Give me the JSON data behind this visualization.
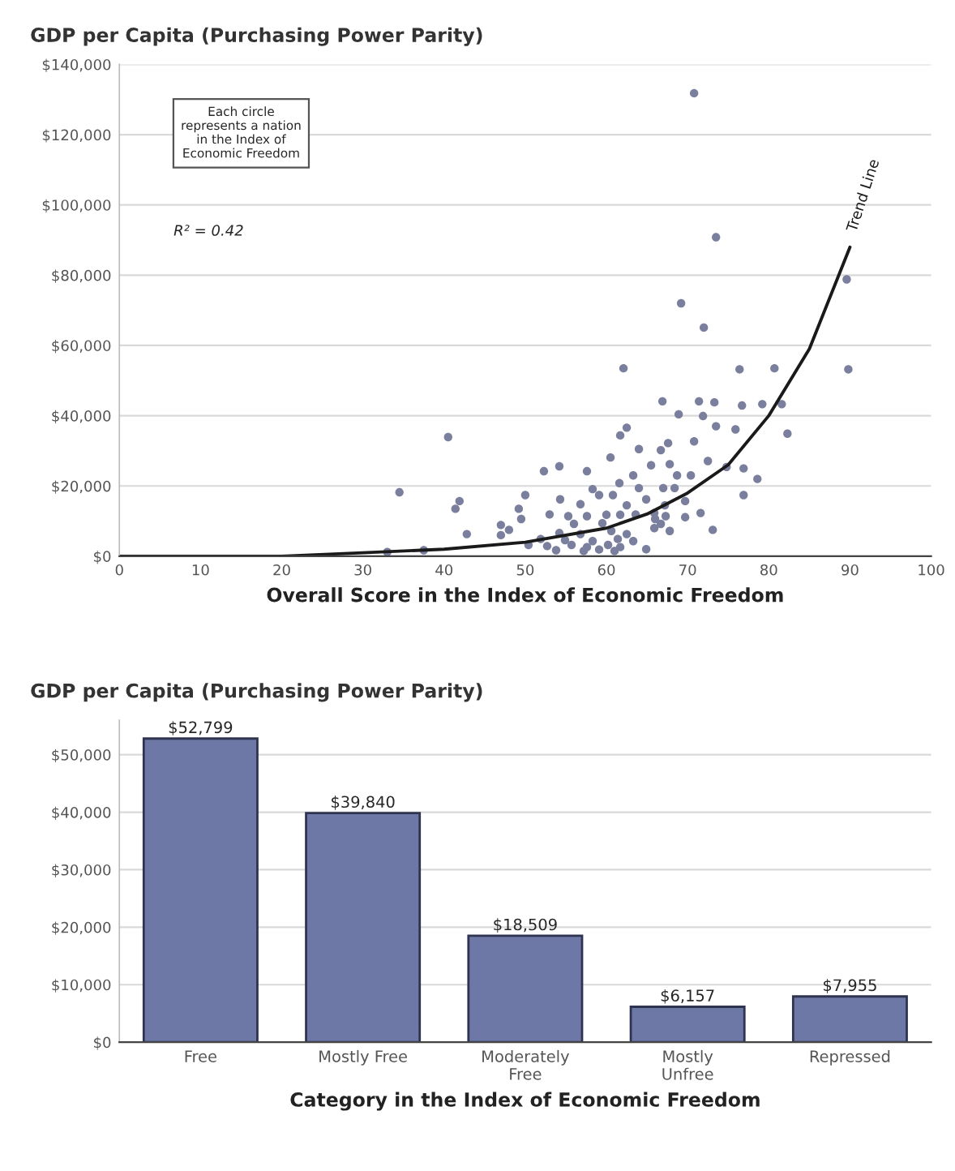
{
  "chart_data": [
    {
      "type": "scatter",
      "title": "GDP per Capita (Purchasing Power Parity)",
      "xlabel": "Overall Score in the Index of Economic Freedom",
      "xlim": [
        0,
        100
      ],
      "xticks": [
        0,
        10,
        20,
        30,
        40,
        50,
        60,
        70,
        80,
        90,
        100
      ],
      "ylim": [
        0,
        140000
      ],
      "yticks": [
        {
          "value": 0,
          "label": "$0"
        },
        {
          "value": 20000,
          "label": "$20,000"
        },
        {
          "value": 40000,
          "label": "$40,000"
        },
        {
          "value": 60000,
          "label": "$60,000"
        },
        {
          "value": 80000,
          "label": "$80,000"
        },
        {
          "value": 100000,
          "label": "$100,000"
        },
        {
          "value": 120000,
          "label": "$120,000"
        },
        {
          "value": 140000,
          "label": "$140,000"
        }
      ],
      "grid": "y",
      "annotations": [
        "Each circle\nrepresents a nation\nin the Index of\nEconomic Freedom",
        "R² = 0.42"
      ],
      "series": [
        {
          "type": "scatter",
          "color": "#7a7f9e",
          "marker": "circle",
          "x": [
            70.8,
            73.5,
            89.6,
            69.2,
            72,
            62.1,
            76.4,
            80.7,
            89.8,
            66.9,
            71.4,
            73.3,
            76.7,
            79.2,
            81.6,
            68.9,
            71.9,
            73.5,
            75.9,
            82.3,
            62.5,
            61.7,
            40.5,
            67.6,
            70.8,
            66.7,
            64,
            60.5,
            72.5,
            65.5,
            67.8,
            54.2,
            52.3,
            57.6,
            74.8,
            76.9,
            63.3,
            68.7,
            70.4,
            78.6,
            61.6,
            34.5,
            58.3,
            64,
            67,
            68.4,
            59.1,
            60.8,
            50,
            76.9,
            41.9,
            54.3,
            64.9,
            69.7,
            41.4,
            49.2,
            56.8,
            62.5,
            67.2,
            53,
            55.3,
            57.6,
            60,
            61.7,
            63.6,
            65.9,
            71.6,
            69.7,
            49.5,
            59.5,
            47,
            48,
            56,
            66.7,
            73.1,
            42.8,
            47,
            54.2,
            56.8,
            60.6,
            65.9,
            67.8,
            62.5,
            51.9,
            54.9,
            58.3,
            61.4,
            63.3,
            50.4,
            52.7,
            55.7,
            57.6,
            60.2,
            61.7,
            64.9,
            53.8,
            57.2,
            59.1,
            61,
            33,
            37.5,
            66,
            67.3
          ],
          "values": [
            131800,
            90800,
            78800,
            72000,
            65100,
            53500,
            53200,
            53500,
            53200,
            44100,
            44100,
            43800,
            42900,
            43300,
            43300,
            40400,
            39900,
            37000,
            36100,
            34900,
            36600,
            34400,
            33900,
            32200,
            32700,
            30200,
            30500,
            28100,
            27100,
            25900,
            26200,
            25600,
            24200,
            24200,
            25400,
            25000,
            23000,
            23000,
            23000,
            22000,
            20800,
            18200,
            19100,
            19400,
            19400,
            19400,
            17400,
            17400,
            17400,
            17400,
            15700,
            16200,
            16200,
            15700,
            13500,
            13500,
            14800,
            14500,
            14500,
            11900,
            11400,
            11400,
            11800,
            11800,
            11900,
            12300,
            12300,
            11100,
            10600,
            9400,
            8900,
            7500,
            9200,
            9200,
            7500,
            6300,
            6000,
            6600,
            6300,
            7200,
            8000,
            7200,
            6300,
            4900,
            4600,
            4300,
            4900,
            4300,
            3200,
            2900,
            3200,
            2600,
            3200,
            2600,
            2000,
            1700,
            1500,
            1900,
            1500,
            1200,
            1700,
            10600,
            11400
          ]
        },
        {
          "type": "line",
          "name": "Trend Line",
          "color": "#1a1a1a",
          "x": [
            0,
            10,
            20,
            30,
            40,
            50,
            60,
            65,
            70,
            75,
            80,
            85,
            90
          ],
          "values": [
            0,
            0,
            0,
            1000,
            2000,
            4000,
            8000,
            12000,
            18000,
            26000,
            40000,
            59000,
            88000
          ]
        }
      ]
    },
    {
      "type": "bar",
      "title": "GDP per Capita (Purchasing Power Parity)",
      "xlabel": "Category in the Index of Economic Freedom",
      "categories": [
        "Free",
        "Mostly Free",
        "Moderately\nFree",
        "Mostly\nUnfree",
        "Repressed"
      ],
      "values": [
        52799,
        39840,
        18509,
        6157,
        7955
      ],
      "value_labels": [
        "$52,799",
        "$39,840",
        "$18,509",
        "$6,157",
        "$7,955"
      ],
      "color": "#6e78a6",
      "ylim": [
        0,
        56000
      ],
      "yticks": [
        {
          "value": 0,
          "label": "$0"
        },
        {
          "value": 10000,
          "label": "$10,000"
        },
        {
          "value": 20000,
          "label": "$20,000"
        },
        {
          "value": 30000,
          "label": "$30,000"
        },
        {
          "value": 40000,
          "label": "$40,000"
        },
        {
          "value": 50000,
          "label": "$50,000"
        }
      ],
      "grid": "y"
    }
  ]
}
